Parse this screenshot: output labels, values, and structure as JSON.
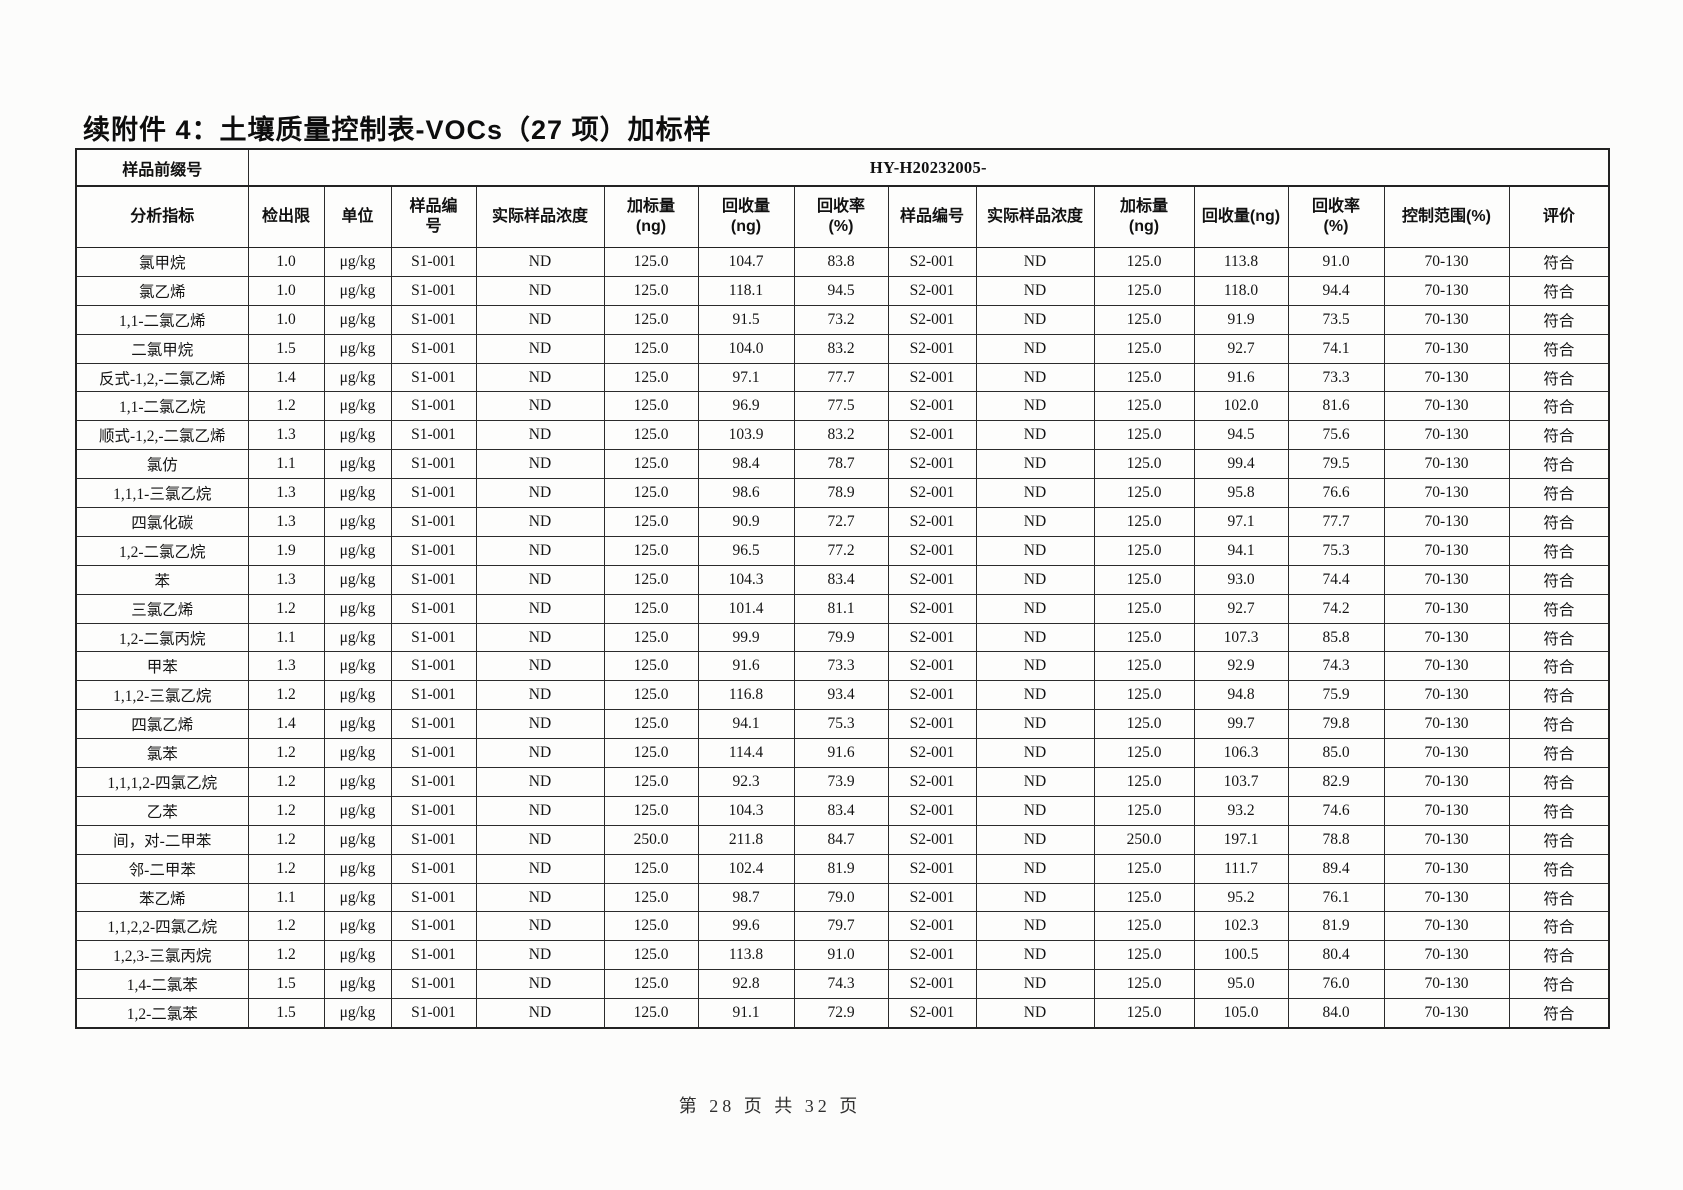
{
  "page": {
    "title": "续附件 4：土壤质量控制表-VOCs（27 项）加标样",
    "footer": "第 28 页 共 32 页"
  },
  "table": {
    "prefix_label": "样品前缀号",
    "prefix_value": "HY-H20232005-",
    "headers": [
      "分析指标",
      "检出限",
      "单位",
      "样品编\n号",
      "实际样品浓度",
      "加标量\n(ng)",
      "回收量\n(ng)",
      "回收率\n(%)",
      "样品编号",
      "实际样品浓度",
      "加标量\n(ng)",
      "回收量(ng)",
      "回收率\n(%)",
      "控制范围(%)",
      "评价"
    ],
    "rows": [
      [
        "氯甲烷",
        "1.0",
        "μg/kg",
        "S1-001",
        "ND",
        "125.0",
        "104.7",
        "83.8",
        "S2-001",
        "ND",
        "125.0",
        "113.8",
        "91.0",
        "70-130",
        "符合"
      ],
      [
        "氯乙烯",
        "1.0",
        "μg/kg",
        "S1-001",
        "ND",
        "125.0",
        "118.1",
        "94.5",
        "S2-001",
        "ND",
        "125.0",
        "118.0",
        "94.4",
        "70-130",
        "符合"
      ],
      [
        "1,1-二氯乙烯",
        "1.0",
        "μg/kg",
        "S1-001",
        "ND",
        "125.0",
        "91.5",
        "73.2",
        "S2-001",
        "ND",
        "125.0",
        "91.9",
        "73.5",
        "70-130",
        "符合"
      ],
      [
        "二氯甲烷",
        "1.5",
        "μg/kg",
        "S1-001",
        "ND",
        "125.0",
        "104.0",
        "83.2",
        "S2-001",
        "ND",
        "125.0",
        "92.7",
        "74.1",
        "70-130",
        "符合"
      ],
      [
        "反式-1,2,-二氯乙烯",
        "1.4",
        "μg/kg",
        "S1-001",
        "ND",
        "125.0",
        "97.1",
        "77.7",
        "S2-001",
        "ND",
        "125.0",
        "91.6",
        "73.3",
        "70-130",
        "符合"
      ],
      [
        "1,1-二氯乙烷",
        "1.2",
        "μg/kg",
        "S1-001",
        "ND",
        "125.0",
        "96.9",
        "77.5",
        "S2-001",
        "ND",
        "125.0",
        "102.0",
        "81.6",
        "70-130",
        "符合"
      ],
      [
        "顺式-1,2,-二氯乙烯",
        "1.3",
        "μg/kg",
        "S1-001",
        "ND",
        "125.0",
        "103.9",
        "83.2",
        "S2-001",
        "ND",
        "125.0",
        "94.5",
        "75.6",
        "70-130",
        "符合"
      ],
      [
        "氯仿",
        "1.1",
        "μg/kg",
        "S1-001",
        "ND",
        "125.0",
        "98.4",
        "78.7",
        "S2-001",
        "ND",
        "125.0",
        "99.4",
        "79.5",
        "70-130",
        "符合"
      ],
      [
        "1,1,1-三氯乙烷",
        "1.3",
        "μg/kg",
        "S1-001",
        "ND",
        "125.0",
        "98.6",
        "78.9",
        "S2-001",
        "ND",
        "125.0",
        "95.8",
        "76.6",
        "70-130",
        "符合"
      ],
      [
        "四氯化碳",
        "1.3",
        "μg/kg",
        "S1-001",
        "ND",
        "125.0",
        "90.9",
        "72.7",
        "S2-001",
        "ND",
        "125.0",
        "97.1",
        "77.7",
        "70-130",
        "符合"
      ],
      [
        "1,2-二氯乙烷",
        "1.9",
        "μg/kg",
        "S1-001",
        "ND",
        "125.0",
        "96.5",
        "77.2",
        "S2-001",
        "ND",
        "125.0",
        "94.1",
        "75.3",
        "70-130",
        "符合"
      ],
      [
        "苯",
        "1.3",
        "μg/kg",
        "S1-001",
        "ND",
        "125.0",
        "104.3",
        "83.4",
        "S2-001",
        "ND",
        "125.0",
        "93.0",
        "74.4",
        "70-130",
        "符合"
      ],
      [
        "三氯乙烯",
        "1.2",
        "μg/kg",
        "S1-001",
        "ND",
        "125.0",
        "101.4",
        "81.1",
        "S2-001",
        "ND",
        "125.0",
        "92.7",
        "74.2",
        "70-130",
        "符合"
      ],
      [
        "1,2-二氯丙烷",
        "1.1",
        "μg/kg",
        "S1-001",
        "ND",
        "125.0",
        "99.9",
        "79.9",
        "S2-001",
        "ND",
        "125.0",
        "107.3",
        "85.8",
        "70-130",
        "符合"
      ],
      [
        "甲苯",
        "1.3",
        "μg/kg",
        "S1-001",
        "ND",
        "125.0",
        "91.6",
        "73.3",
        "S2-001",
        "ND",
        "125.0",
        "92.9",
        "74.3",
        "70-130",
        "符合"
      ],
      [
        "1,1,2-三氯乙烷",
        "1.2",
        "μg/kg",
        "S1-001",
        "ND",
        "125.0",
        "116.8",
        "93.4",
        "S2-001",
        "ND",
        "125.0",
        "94.8",
        "75.9",
        "70-130",
        "符合"
      ],
      [
        "四氯乙烯",
        "1.4",
        "μg/kg",
        "S1-001",
        "ND",
        "125.0",
        "94.1",
        "75.3",
        "S2-001",
        "ND",
        "125.0",
        "99.7",
        "79.8",
        "70-130",
        "符合"
      ],
      [
        "氯苯",
        "1.2",
        "μg/kg",
        "S1-001",
        "ND",
        "125.0",
        "114.4",
        "91.6",
        "S2-001",
        "ND",
        "125.0",
        "106.3",
        "85.0",
        "70-130",
        "符合"
      ],
      [
        "1,1,1,2-四氯乙烷",
        "1.2",
        "μg/kg",
        "S1-001",
        "ND",
        "125.0",
        "92.3",
        "73.9",
        "S2-001",
        "ND",
        "125.0",
        "103.7",
        "82.9",
        "70-130",
        "符合"
      ],
      [
        "乙苯",
        "1.2",
        "μg/kg",
        "S1-001",
        "ND",
        "125.0",
        "104.3",
        "83.4",
        "S2-001",
        "ND",
        "125.0",
        "93.2",
        "74.6",
        "70-130",
        "符合"
      ],
      [
        "间，对-二甲苯",
        "1.2",
        "μg/kg",
        "S1-001",
        "ND",
        "250.0",
        "211.8",
        "84.7",
        "S2-001",
        "ND",
        "250.0",
        "197.1",
        "78.8",
        "70-130",
        "符合"
      ],
      [
        "邻-二甲苯",
        "1.2",
        "μg/kg",
        "S1-001",
        "ND",
        "125.0",
        "102.4",
        "81.9",
        "S2-001",
        "ND",
        "125.0",
        "111.7",
        "89.4",
        "70-130",
        "符合"
      ],
      [
        "苯乙烯",
        "1.1",
        "μg/kg",
        "S1-001",
        "ND",
        "125.0",
        "98.7",
        "79.0",
        "S2-001",
        "ND",
        "125.0",
        "95.2",
        "76.1",
        "70-130",
        "符合"
      ],
      [
        "1,1,2,2-四氯乙烷",
        "1.2",
        "μg/kg",
        "S1-001",
        "ND",
        "125.0",
        "99.6",
        "79.7",
        "S2-001",
        "ND",
        "125.0",
        "102.3",
        "81.9",
        "70-130",
        "符合"
      ],
      [
        "1,2,3-三氯丙烷",
        "1.2",
        "μg/kg",
        "S1-001",
        "ND",
        "125.0",
        "113.8",
        "91.0",
        "S2-001",
        "ND",
        "125.0",
        "100.5",
        "80.4",
        "70-130",
        "符合"
      ],
      [
        "1,4-二氯苯",
        "1.5",
        "μg/kg",
        "S1-001",
        "ND",
        "125.0",
        "92.8",
        "74.3",
        "S2-001",
        "ND",
        "125.0",
        "95.0",
        "76.0",
        "70-130",
        "符合"
      ],
      [
        "1,2-二氯苯",
        "1.5",
        "μg/kg",
        "S1-001",
        "ND",
        "125.0",
        "91.1",
        "72.9",
        "S2-001",
        "ND",
        "125.0",
        "105.0",
        "84.0",
        "70-130",
        "符合"
      ]
    ]
  }
}
